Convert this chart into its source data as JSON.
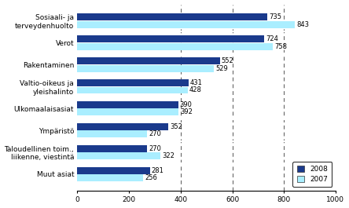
{
  "categories": [
    "Sosiaali- ja\nterveydenhuolto",
    "Verot",
    "Rakentaminen",
    "Valtio-oikeus ja\nyleishalinto",
    "Ulkomaalaisasiat",
    "Ympäristö",
    "Taloudellinen toim.,\nliikenne, viestintä",
    "Muut asiat"
  ],
  "values_2008": [
    735,
    724,
    552,
    431,
    390,
    352,
    270,
    281
  ],
  "values_2007": [
    843,
    758,
    529,
    428,
    392,
    270,
    322,
    256
  ],
  "color_2008": "#1a3a8c",
  "color_2007": "#aaeeff",
  "bar_height": 0.32,
  "xlim": [
    0,
    1000
  ],
  "xticks": [
    0,
    200,
    400,
    600,
    800,
    1000
  ],
  "dashed_lines": [
    400,
    600,
    800
  ],
  "legend_labels": [
    "2008",
    "2007"
  ],
  "label_fontsize": 6.5,
  "tick_fontsize": 6.5,
  "value_fontsize": 6
}
